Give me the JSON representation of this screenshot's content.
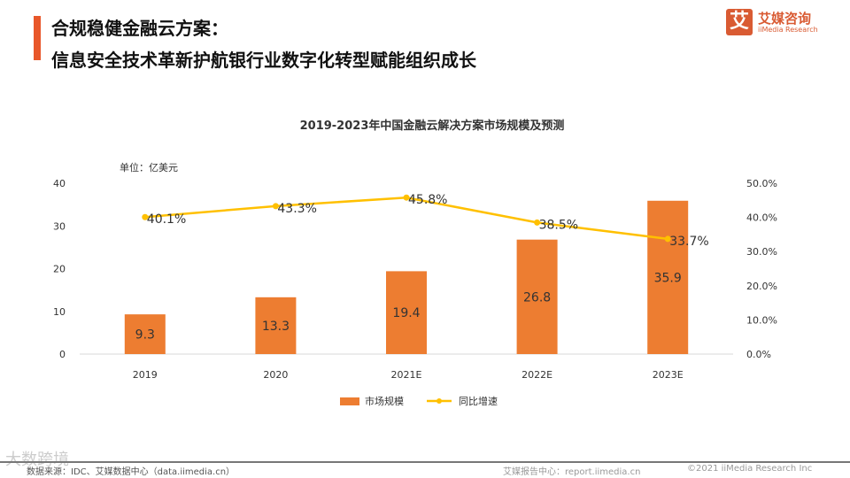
{
  "header": {
    "title_line1": "合规稳健金融云方案：",
    "title_line2": "信息安全技术革新护航银行业数字化转型赋能组织成长"
  },
  "logo": {
    "mark": "艾",
    "name_cn": "艾媒咨询",
    "name_en": "iiMedia Research"
  },
  "chart_data": {
    "type": "bar+line",
    "title": "2019-2023年中国金融云解决方案市场规模及预测",
    "unit_label": "单位：亿美元",
    "categories": [
      "2019",
      "2020",
      "2021E",
      "2022E",
      "2023E"
    ],
    "series": [
      {
        "name": "市场规模",
        "type": "bar",
        "axis": "left",
        "color": "#ed7d31",
        "values": [
          9.3,
          13.3,
          19.4,
          26.8,
          35.9
        ],
        "labels": [
          "9.3",
          "13.3",
          "19.4",
          "26.8",
          "35.9"
        ]
      },
      {
        "name": "同比增速",
        "type": "line",
        "axis": "right",
        "color": "#ffc000",
        "values": [
          40.1,
          43.3,
          45.8,
          38.5,
          33.7
        ],
        "labels": [
          "40.1%",
          "43.3%",
          "45.8%",
          "38.5%",
          "33.7%"
        ]
      }
    ],
    "left_axis": {
      "ylim": [
        0,
        40
      ],
      "ticks": [
        "0",
        "10",
        "20",
        "30",
        "40"
      ]
    },
    "right_axis": {
      "ylim": [
        0,
        50
      ],
      "ticks": [
        "0.0%",
        "10.0%",
        "20.0%",
        "30.0%",
        "40.0%",
        "50.0%"
      ]
    },
    "legend_placement": "bottom"
  },
  "footer": {
    "source": "数据来源：IDC、艾媒数据中心（data.iimedia.cn）",
    "report": "艾媒报告中心：report.iimedia.cn",
    "copyright": "©2021  iiMedia Research  Inc",
    "watermark": "大数跨境"
  }
}
